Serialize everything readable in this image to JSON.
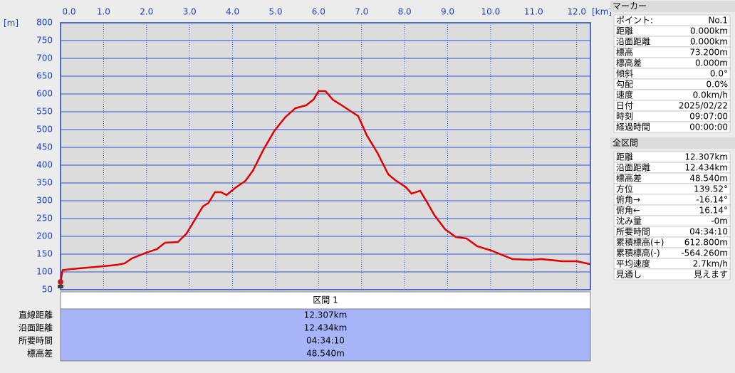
{
  "chart_data": {
    "type": "line",
    "x_unit": "[km]",
    "y_unit": "[m]",
    "x": [
      0,
      0.05,
      0.25,
      1.0,
      1.32,
      1.49,
      1.66,
      1.99,
      2.24,
      2.43,
      2.73,
      2.93,
      3.06,
      3.31,
      3.44,
      3.59,
      3.73,
      3.86,
      4.06,
      4.3,
      4.47,
      4.72,
      4.97,
      5.22,
      5.46,
      5.71,
      5.88,
      6.0,
      6.16,
      6.33,
      6.54,
      6.79,
      6.92,
      7.12,
      7.37,
      7.62,
      7.78,
      8.03,
      8.16,
      8.36,
      8.53,
      8.69,
      8.94,
      9.19,
      9.44,
      9.69,
      10.02,
      10.26,
      10.51,
      10.93,
      11.18,
      11.67,
      12.0,
      12.307
    ],
    "values": [
      73,
      105,
      108,
      116,
      120,
      124,
      138,
      154,
      164,
      182,
      184,
      208,
      234,
      284,
      294,
      324,
      324,
      316,
      336,
      356,
      384,
      444,
      496,
      534,
      560,
      568,
      584,
      608,
      608,
      584,
      568,
      548,
      538,
      484,
      434,
      374,
      358,
      338,
      320,
      328,
      294,
      260,
      220,
      198,
      194,
      172,
      160,
      148,
      136,
      134,
      136,
      130,
      130,
      122
    ],
    "color": "#e00000",
    "xlim": [
      0,
      12.32
    ],
    "xticks": [
      {
        "value": 0,
        "label": "0.0"
      },
      {
        "value": 1,
        "label": "1.0"
      },
      {
        "value": 2,
        "label": "2.0"
      },
      {
        "value": 3,
        "label": "3.0"
      },
      {
        "value": 4,
        "label": "4.0"
      },
      {
        "value": 5,
        "label": "5.0"
      },
      {
        "value": 6,
        "label": "6.0"
      },
      {
        "value": 7,
        "label": "7.0"
      },
      {
        "value": 8,
        "label": "8.0"
      },
      {
        "value": 9,
        "label": "9.0"
      },
      {
        "value": 10,
        "label": "10.0"
      },
      {
        "value": 11,
        "label": "11.0"
      },
      {
        "value": 12,
        "label": "12.0"
      }
    ],
    "ylim": [
      50,
      800
    ],
    "yticks": [
      50,
      100,
      150,
      200,
      250,
      300,
      350,
      400,
      450,
      500,
      550,
      600,
      650,
      700,
      750,
      800
    ],
    "grid": true
  },
  "section_table": {
    "header": "区間 1",
    "rows": [
      [
        "直線距離",
        "12.307km"
      ],
      [
        "沿面距離",
        "12.434km"
      ],
      [
        "所要時間",
        "04:34:10"
      ],
      [
        "標高差",
        "48.540m"
      ]
    ]
  },
  "marker_panel": {
    "title": "マーカー",
    "rows": [
      [
        "ポイント:",
        "No.1"
      ],
      [
        "距離",
        "0.000km"
      ],
      [
        "沿面距離",
        "0.000km"
      ],
      [
        "標高",
        "73.200m"
      ],
      [
        "標高差",
        "0.000m"
      ],
      [
        "傾斜",
        "0.0°"
      ],
      [
        "勾配",
        "0.0%"
      ],
      [
        "速度",
        "0.0km/h"
      ],
      [
        "日付",
        "2025/02/22"
      ],
      [
        "時刻",
        "09:07:00"
      ],
      [
        "経過時間",
        "00:00:00"
      ]
    ]
  },
  "total_panel": {
    "title": "全区間",
    "rows": [
      [
        "距離",
        "12.307km"
      ],
      [
        "沿面距離",
        "12.434km"
      ],
      [
        "標高差",
        "48.540m"
      ],
      [
        "方位",
        "139.52°"
      ],
      [
        "俯角→",
        "-16.14°"
      ],
      [
        "俯角←",
        "16.14°"
      ],
      [
        "沈み量",
        "-0m"
      ],
      [
        "所要時間",
        "04:34:10"
      ],
      [
        "累積標高(+)",
        "612.800m"
      ],
      [
        "累積標高(-)",
        "-564.260m"
      ],
      [
        "平均速度",
        "2.7km/h"
      ],
      [
        "見通し",
        "見えます"
      ]
    ]
  }
}
